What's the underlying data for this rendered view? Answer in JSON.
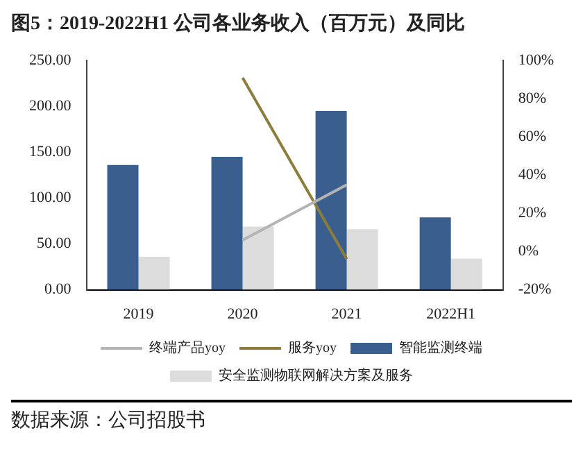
{
  "chart_data": {
    "type": "bar",
    "title": "图5：2019-2022H1 公司各业务收入（百万元）及同比",
    "categories": [
      "2019",
      "2020",
      "2021",
      "2022H1"
    ],
    "series": [
      {
        "name": "智能监测终端",
        "color": "#3a5f8f",
        "values": [
          136,
          145,
          195,
          79
        ]
      },
      {
        "name": "安全监测物联网解决方案及服务",
        "color": "#dcdcdc",
        "values": [
          36,
          69,
          66,
          34
        ]
      },
      {
        "name": "终端产品yoy",
        "type": "line",
        "axis": "y2",
        "color": "#b4b4b4",
        "values": [
          null,
          6,
          35,
          null
        ]
      },
      {
        "name": "服务yoy",
        "type": "line",
        "axis": "y2",
        "color": "#8b7d3a",
        "values": [
          null,
          91,
          -4,
          null
        ]
      }
    ],
    "ylim": [
      0,
      250
    ],
    "yticks": [
      {
        "value": 0,
        "label": "0.00"
      },
      {
        "value": 50,
        "label": "50.00"
      },
      {
        "value": 100,
        "label": "100.00"
      },
      {
        "value": 150,
        "label": "150.00"
      },
      {
        "value": 200,
        "label": "200.00"
      },
      {
        "value": 250,
        "label": "250.00"
      }
    ],
    "y2lim": [
      -20,
      100
    ],
    "y2ticks": [
      {
        "value": -20,
        "label": "-20%"
      },
      {
        "value": 0,
        "label": "0%"
      },
      {
        "value": 20,
        "label": "20%"
      },
      {
        "value": 40,
        "label": "40%"
      },
      {
        "value": 60,
        "label": "60%"
      },
      {
        "value": 80,
        "label": "80%"
      },
      {
        "value": 100,
        "label": "100%"
      }
    ],
    "grid": false,
    "legend": "bottom",
    "marker": "none",
    "line_style": "solid",
    "annotations": [
      "数据来源：公司招股书"
    ]
  }
}
